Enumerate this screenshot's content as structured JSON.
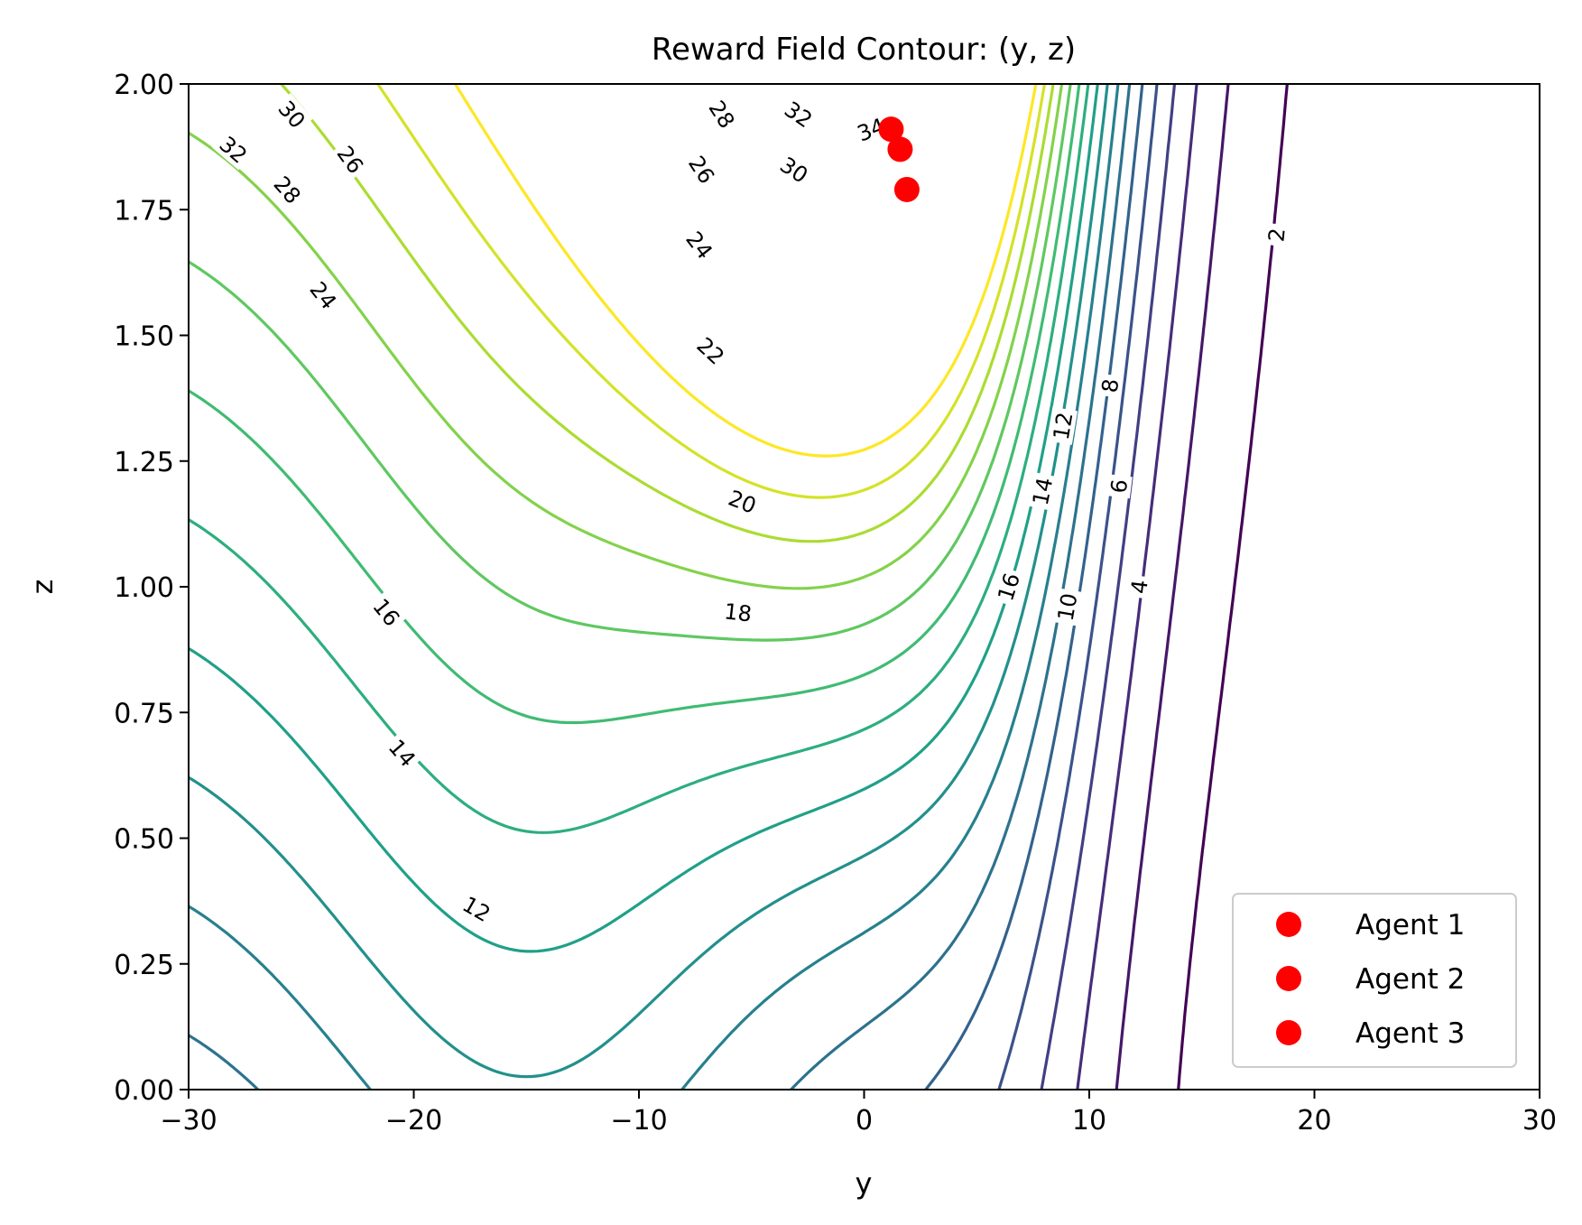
{
  "chart_data": {
    "type": "contour",
    "title": "Reward Field Contour: (y, z)",
    "xlabel": "y",
    "ylabel": "z",
    "xlim": [
      -30,
      30
    ],
    "ylim": [
      0,
      2
    ],
    "xticks": [
      -30,
      -20,
      -10,
      0,
      10,
      20,
      30
    ],
    "xtick_labels": [
      "−30",
      "−20",
      "−10",
      "0",
      "10",
      "20",
      "30"
    ],
    "yticks": [
      0,
      0.25,
      0.5,
      0.75,
      1.0,
      1.25,
      1.5,
      1.75,
      2.0
    ],
    "ytick_labels": [
      "0.00",
      "0.25",
      "0.50",
      "0.75",
      "1.00",
      "1.25",
      "1.50",
      "1.75",
      "2.00"
    ],
    "grid": false,
    "colormap": "viridis",
    "contour_levels": [
      2,
      4,
      6,
      8,
      10,
      12,
      14,
      16,
      18,
      20,
      22,
      24,
      26,
      28,
      30,
      32,
      34
    ],
    "contour_labels": [
      {
        "text": "2",
        "y": 18.3,
        "z": 1.7
      },
      {
        "text": "4",
        "y": 12.2,
        "z": 1.0
      },
      {
        "text": "6",
        "y": 11.3,
        "z": 1.2
      },
      {
        "text": "8",
        "y": 10.9,
        "z": 1.4
      },
      {
        "text": "10",
        "y": 9.0,
        "z": 0.96
      },
      {
        "text": "12",
        "y": 8.8,
        "z": 1.32
      },
      {
        "text": "14",
        "y": 7.9,
        "z": 1.19
      },
      {
        "text": "16",
        "y": 6.4,
        "z": 1.0
      },
      {
        "text": "18",
        "y": -5.6,
        "z": 0.95
      },
      {
        "text": "20",
        "y": -5.4,
        "z": 1.17
      },
      {
        "text": "22",
        "y": -6.8,
        "z": 1.47
      },
      {
        "text": "24",
        "y": -7.3,
        "z": 1.68
      },
      {
        "text": "26",
        "y": -7.2,
        "z": 1.83
      },
      {
        "text": "28",
        "y": -6.3,
        "z": 1.94
      },
      {
        "text": "30",
        "y": -3.1,
        "z": 1.83
      },
      {
        "text": "32",
        "y": -2.9,
        "z": 1.94
      },
      {
        "text": "34",
        "y": 0.3,
        "z": 1.91
      },
      {
        "text": "12",
        "y": -17.2,
        "z": 0.36
      },
      {
        "text": "14",
        "y": -20.5,
        "z": 0.67
      },
      {
        "text": "16",
        "y": -21.2,
        "z": 0.95
      },
      {
        "text": "24",
        "y": -24.0,
        "z": 1.58
      },
      {
        "text": "26",
        "y": -22.8,
        "z": 1.85
      },
      {
        "text": "28",
        "y": -25.6,
        "z": 1.79
      },
      {
        "text": "30",
        "y": -25.4,
        "z": 1.94
      },
      {
        "text": "32",
        "y": -28.0,
        "z": 1.87
      }
    ],
    "series": [
      {
        "name": "Agent 1",
        "color": "#ff0000",
        "points": [
          {
            "y": 1.2,
            "z": 1.91
          }
        ]
      },
      {
        "name": "Agent 2",
        "color": "#ff0000",
        "points": [
          {
            "y": 1.6,
            "z": 1.87
          }
        ]
      },
      {
        "name": "Agent 3",
        "color": "#ff0000",
        "points": [
          {
            "y": 1.9,
            "z": 1.79
          }
        ]
      }
    ],
    "legend_position": "lower right"
  }
}
